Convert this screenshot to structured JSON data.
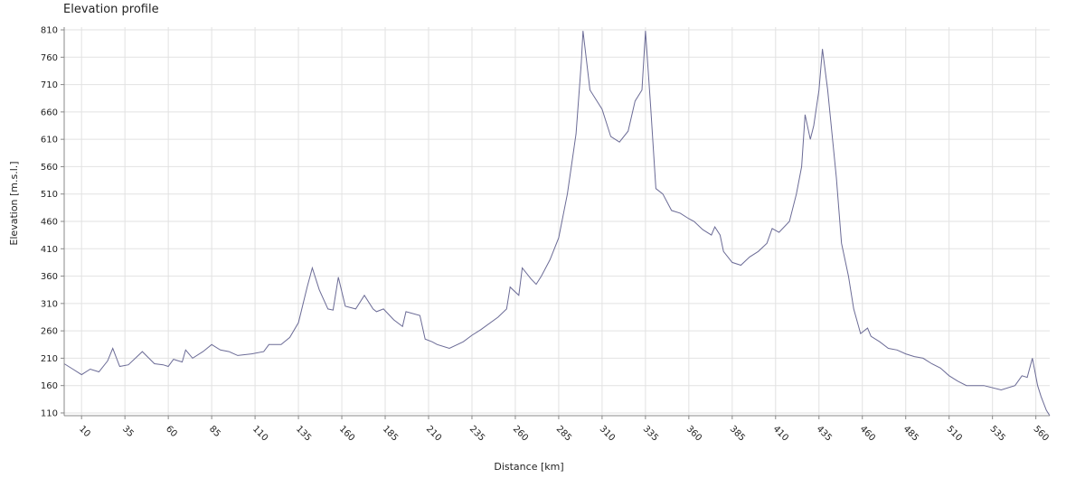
{
  "chart_data": {
    "type": "line",
    "title": "Elevation profile",
    "xlabel": "Distance [km]",
    "ylabel": "Elevation [m.s.l.]",
    "xlim": [
      0,
      568
    ],
    "ylim": [
      105,
      815
    ],
    "x_ticks": [
      10,
      35,
      60,
      85,
      110,
      135,
      160,
      185,
      210,
      235,
      260,
      285,
      310,
      335,
      360,
      385,
      410,
      435,
      460,
      485,
      510,
      535,
      560
    ],
    "y_ticks": [
      110,
      160,
      210,
      260,
      310,
      360,
      410,
      460,
      510,
      560,
      610,
      660,
      710,
      760,
      810
    ],
    "grid": true,
    "line_color": "#6b6b96",
    "series": [
      {
        "points": [
          [
            0,
            200
          ],
          [
            5,
            190
          ],
          [
            10,
            180
          ],
          [
            15,
            190
          ],
          [
            20,
            185
          ],
          [
            25,
            205
          ],
          [
            28,
            228
          ],
          [
            32,
            195
          ],
          [
            37,
            198
          ],
          [
            45,
            222
          ],
          [
            52,
            200
          ],
          [
            57,
            198
          ],
          [
            60,
            195
          ],
          [
            63,
            208
          ],
          [
            68,
            203
          ],
          [
            70,
            225
          ],
          [
            74,
            210
          ],
          [
            80,
            222
          ],
          [
            85,
            235
          ],
          [
            90,
            225
          ],
          [
            95,
            222
          ],
          [
            100,
            215
          ],
          [
            108,
            218
          ],
          [
            115,
            222
          ],
          [
            118,
            235
          ],
          [
            125,
            235
          ],
          [
            130,
            248
          ],
          [
            135,
            275
          ],
          [
            140,
            340
          ],
          [
            143,
            375
          ],
          [
            147,
            335
          ],
          [
            152,
            300
          ],
          [
            155,
            298
          ],
          [
            158,
            358
          ],
          [
            162,
            305
          ],
          [
            168,
            300
          ],
          [
            173,
            325
          ],
          [
            178,
            300
          ],
          [
            180,
            295
          ],
          [
            184,
            300
          ],
          [
            190,
            280
          ],
          [
            195,
            268
          ],
          [
            197,
            295
          ],
          [
            205,
            288
          ],
          [
            208,
            245
          ],
          [
            212,
            240
          ],
          [
            215,
            235
          ],
          [
            222,
            228
          ],
          [
            230,
            240
          ],
          [
            235,
            252
          ],
          [
            240,
            262
          ],
          [
            250,
            285
          ],
          [
            255,
            300
          ],
          [
            257,
            340
          ],
          [
            262,
            325
          ],
          [
            264,
            375
          ],
          [
            269,
            355
          ],
          [
            272,
            345
          ],
          [
            275,
            360
          ],
          [
            280,
            390
          ],
          [
            285,
            430
          ],
          [
            290,
            510
          ],
          [
            295,
            620
          ],
          [
            298,
            750
          ],
          [
            299,
            808
          ],
          [
            303,
            700
          ],
          [
            310,
            665
          ],
          [
            315,
            615
          ],
          [
            320,
            605
          ],
          [
            325,
            625
          ],
          [
            329,
            680
          ],
          [
            333,
            700
          ],
          [
            335,
            808
          ],
          [
            338,
            670
          ],
          [
            341,
            520
          ],
          [
            345,
            510
          ],
          [
            350,
            480
          ],
          [
            355,
            475
          ],
          [
            360,
            465
          ],
          [
            363,
            460
          ],
          [
            368,
            445
          ],
          [
            373,
            435
          ],
          [
            375,
            450
          ],
          [
            378,
            435
          ],
          [
            380,
            405
          ],
          [
            385,
            385
          ],
          [
            390,
            380
          ],
          [
            395,
            395
          ],
          [
            400,
            405
          ],
          [
            405,
            420
          ],
          [
            408,
            447
          ],
          [
            412,
            440
          ],
          [
            418,
            460
          ],
          [
            422,
            510
          ],
          [
            425,
            560
          ],
          [
            427,
            655
          ],
          [
            430,
            610
          ],
          [
            432,
            635
          ],
          [
            435,
            700
          ],
          [
            437,
            775
          ],
          [
            440,
            700
          ],
          [
            445,
            540
          ],
          [
            448,
            420
          ],
          [
            452,
            360
          ],
          [
            455,
            300
          ],
          [
            459,
            255
          ],
          [
            463,
            265
          ],
          [
            465,
            250
          ],
          [
            470,
            240
          ],
          [
            475,
            228
          ],
          [
            480,
            225
          ],
          [
            485,
            218
          ],
          [
            490,
            213
          ],
          [
            495,
            210
          ],
          [
            500,
            200
          ],
          [
            505,
            192
          ],
          [
            510,
            178
          ],
          [
            515,
            168
          ],
          [
            520,
            160
          ],
          [
            530,
            160
          ],
          [
            540,
            152
          ],
          [
            548,
            160
          ],
          [
            552,
            178
          ],
          [
            555,
            175
          ],
          [
            558,
            210
          ],
          [
            561,
            160
          ],
          [
            563,
            140
          ],
          [
            566,
            115
          ],
          [
            568,
            105
          ]
        ]
      }
    ]
  }
}
